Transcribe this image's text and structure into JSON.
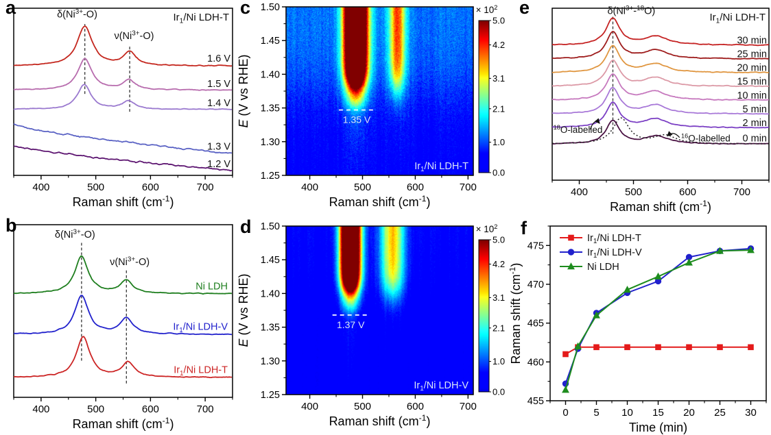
{
  "figure": {
    "background": "#ffffff",
    "text_color": "#000000"
  },
  "chart_data": [
    {
      "panel_letter": "a",
      "type": "spectra",
      "title": "Ir_1_/Ni LDH-T",
      "xlabel": "Raman shift (cm^-1^)",
      "x_range": [
        350,
        750
      ],
      "xticks": [
        "400",
        "500",
        "600",
        "700"
      ],
      "xminor_step": 50,
      "peak_labels": [
        {
          "text": "δ(Ni^3+^-O)",
          "x": 466,
          "yf": 0.055
        },
        {
          "text": "ν(Ni^3+^-O)",
          "x": 570,
          "yf": 0.185
        }
      ],
      "dashed_lines": [
        {
          "x": 480,
          "y0f": 0.095,
          "y1f": 0.52
        },
        {
          "x": 562,
          "y0f": 0.23,
          "y1f": 0.63
        }
      ],
      "curves": [
        {
          "label": "1.6 V",
          "color": "#c4261d",
          "basef": 0.345,
          "peaks": [
            [
              480,
              0.235,
              17
            ],
            [
              562,
              0.082,
              13
            ]
          ],
          "noise": 0.004,
          "label_yf": 0.3
        },
        {
          "label": "1.5 V",
          "color": "#b76bad",
          "basef": 0.49,
          "peaks": [
            [
              480,
              0.185,
              16
            ],
            [
              561,
              0.06,
              13
            ]
          ],
          "noise": 0.004,
          "label_yf": 0.45
        },
        {
          "label": "1.4 V",
          "color": "#9a79cf",
          "basef": 0.605,
          "peaks": [
            [
              479,
              0.148,
              15
            ],
            [
              560,
              0.05,
              13
            ]
          ],
          "noise": 0.004,
          "label_yf": 0.565
        },
        {
          "label": "1.3 V",
          "color": "#5a62c4",
          "basef": 0.695,
          "decay": 0.175,
          "noise": 0.007,
          "label_yf": 0.825
        },
        {
          "label": "1.2 V",
          "color": "#5c1470",
          "basef": 0.82,
          "decay": 0.15,
          "noise": 0.008,
          "label_yf": 0.93
        }
      ]
    },
    {
      "panel_letter": "b",
      "type": "spectra",
      "title": "",
      "xlabel": "Raman shift (cm^-1^)",
      "x_range": [
        350,
        750
      ],
      "xticks": [
        "400",
        "500",
        "600",
        "700"
      ],
      "xminor_step": 50,
      "peak_labels": [
        {
          "text": "δ(Ni^3+^-O)",
          "x": 462,
          "yf": 0.075
        },
        {
          "text": "ν(Ni^3+^-O)",
          "x": 562,
          "yf": 0.235
        }
      ],
      "dashed_lines": [
        {
          "x": 474,
          "y0f": 0.105,
          "y1f": 0.795
        },
        {
          "x": 556,
          "y0f": 0.265,
          "y1f": 0.925
        }
      ],
      "label_colored": true,
      "curves": [
        {
          "label": "Ni LDH",
          "color": "#1e7e1e",
          "basef": 0.4,
          "peaks": [
            [
              474,
              0.215,
              15
            ],
            [
              556,
              0.075,
              14
            ]
          ],
          "noise": 0.004,
          "label_yf": 0.355
        },
        {
          "label": "Ir_1_/Ni LDH-V",
          "color": "#2121cc",
          "basef": 0.635,
          "peaks": [
            [
              474,
              0.225,
              15
            ],
            [
              556,
              0.09,
              14
            ]
          ],
          "noise": 0.004,
          "label_yf": 0.59
        },
        {
          "label": "Ir_1_/Ni LDH-T",
          "color": "#cc2424",
          "basef": 0.885,
          "peaks": [
            [
              477,
              0.235,
              15
            ],
            [
              559,
              0.085,
              14
            ]
          ],
          "noise": 0.004,
          "label_yf": 0.84
        }
      ]
    },
    {
      "panel_letter": "c",
      "type": "heatmap",
      "sample_label": "Ir_1_/Ni LDH-T",
      "xlabel": "Raman shift (cm^-1^)",
      "ylabel": "*E* (V vs RHE)",
      "x_range": [
        355,
        710
      ],
      "xticks": [
        "400",
        "500",
        "600",
        "700"
      ],
      "xminor_step": 50,
      "y_range": [
        1.25,
        1.5
      ],
      "yticks": [
        "1.25",
        "1.30",
        "1.35",
        "1.40",
        "1.45",
        "1.50"
      ],
      "yminor_step": 0.025,
      "colorbar": {
        "title": "× 10^2^",
        "ticks": [
          "0.0",
          "1.0",
          "2.1",
          "3.1",
          "4.2",
          "5.0"
        ],
        "max": 5
      },
      "bands": [
        {
          "center": 487,
          "sigma": 20,
          "amp": 8.0,
          "onset": 1.389,
          "k": 0.01,
          "sub_amp": 1.8,
          "sub_onset": 1.352,
          "sub_k": 0.006,
          "tail": 0.55
        },
        {
          "center": 566,
          "sigma": 15,
          "amp": 2.3,
          "onset": 1.385,
          "k": 0.012,
          "sub_amp": 0.5,
          "sub_onset": 1.36,
          "sub_k": 0.01,
          "tail": 0.2
        }
      ],
      "background": {
        "base": 0.45,
        "rise": 0.75,
        "mid": 1.37,
        "width": 0.03,
        "noise": 0.5
      },
      "marker": {
        "E": 1.347,
        "x0": 455,
        "x1": 523,
        "label": "1.35 V"
      }
    },
    {
      "panel_letter": "d",
      "type": "heatmap",
      "sample_label": "Ir_1_/Ni LDH-V",
      "xlabel": "Raman shift (cm^-1^)",
      "ylabel": "*E* (V vs RHE)",
      "x_range": [
        355,
        710
      ],
      "xticks": [
        "400",
        "500",
        "600",
        "700"
      ],
      "xminor_step": 50,
      "y_range": [
        1.25,
        1.5
      ],
      "yticks": [
        "1.25",
        "1.30",
        "1.35",
        "1.40",
        "1.45",
        "1.50"
      ],
      "yminor_step": 0.025,
      "colorbar": {
        "title": "× 10^2^",
        "ticks": [
          "0.0",
          "1.0",
          "2.1",
          "3.1",
          "4.2",
          "5.0"
        ],
        "max": 5
      },
      "bands": [
        {
          "center": 477,
          "sigma": 18,
          "amp": 8.0,
          "onset": 1.408,
          "k": 0.009,
          "sub_amp": 1.5,
          "sub_onset": 1.375,
          "sub_k": 0.006,
          "tail": 0.3
        },
        {
          "center": 557,
          "sigma": 22,
          "amp": 2.4,
          "onset": 1.405,
          "k": 0.012,
          "sub_amp": 0.4,
          "sub_onset": 1.38,
          "sub_k": 0.01,
          "tail": 0.15
        }
      ],
      "background": {
        "base": 0.32,
        "rise": 0.25,
        "mid": 1.42,
        "width": 0.04,
        "noise": 0.28
      },
      "marker": {
        "E": 1.368,
        "x0": 443,
        "x1": 512,
        "label": "1.37 V"
      }
    },
    {
      "panel_letter": "e",
      "type": "spectra",
      "title": "Ir_1_/Ni LDH-T",
      "xlabel": "Raman shift (cm^-1^)",
      "x_range": [
        350,
        750
      ],
      "xticks": [
        "400",
        "500",
        "600",
        "700"
      ],
      "xminor_step": 50,
      "peak_labels": [
        {
          "text": "δ(Ni^3+^-^18^O)",
          "x": 496,
          "yf": 0.033
        }
      ],
      "dashed_lines": [
        {
          "x": 462,
          "y0f": 0.05,
          "y1f": 0.73
        }
      ],
      "curves": [
        {
          "label": "30 min",
          "color": "#c52222",
          "basef": 0.215,
          "peaks": [
            [
              462,
              0.155,
              15
            ],
            [
              542,
              0.05,
              26
            ]
          ],
          "noise": 0.0035,
          "label_yf": 0.185
        },
        {
          "label": "25 min",
          "color": "#9e1c1c",
          "basef": 0.295,
          "peaks": [
            [
              462,
              0.155,
              15
            ],
            [
              542,
              0.05,
              26
            ]
          ],
          "noise": 0.0035,
          "label_yf": 0.265
        },
        {
          "label": "20 min",
          "color": "#e09640",
          "basef": 0.375,
          "peaks": [
            [
              462,
              0.155,
              15
            ],
            [
              541,
              0.05,
              26
            ]
          ],
          "noise": 0.0035,
          "label_yf": 0.345
        },
        {
          "label": "15 min",
          "color": "#dc99a6",
          "basef": 0.455,
          "peaks": [
            [
              462,
              0.15,
              15
            ],
            [
              541,
              0.05,
              26
            ]
          ],
          "noise": 0.0035,
          "label_yf": 0.425
        },
        {
          "label": "10 min",
          "color": "#c678be",
          "basef": 0.535,
          "peaks": [
            [
              462,
              0.15,
              15
            ],
            [
              540,
              0.05,
              26
            ]
          ],
          "noise": 0.0035,
          "label_yf": 0.505
        },
        {
          "label": "5 min",
          "color": "#a878d8",
          "basef": 0.615,
          "peaks": [
            [
              462,
              0.15,
              15
            ],
            [
              540,
              0.05,
              26
            ]
          ],
          "noise": 0.0035,
          "label_yf": 0.585
        },
        {
          "label": "2 min",
          "color": "#7b3fc4",
          "basef": 0.695,
          "peaks": [
            [
              462,
              0.145,
              15
            ],
            [
              540,
              0.05,
              26
            ]
          ],
          "noise": 0.0035,
          "label_yf": 0.665
        },
        {
          "label": "0 min",
          "color": "#4a1243",
          "basef": 0.79,
          "peaks": [
            [
              462,
              0.135,
              15
            ],
            [
              543,
              0.045,
              26
            ]
          ],
          "noise": 0.0035,
          "label_yf": 0.755
        }
      ],
      "reference_curve": {
        "color": "#222222",
        "basef": 0.79,
        "peaks": [
          [
            477,
            0.15,
            18
          ],
          [
            558,
            0.048,
            24
          ]
        ],
        "noise": 0.002,
        "dotted": true
      },
      "annotations": [
        {
          "text": "^18^O-labelled",
          "x": 352,
          "yf": 0.725,
          "anchor": "start",
          "arrow": {
            "x1": 420,
            "y1f": 0.705,
            "x2": 437,
            "y2f": 0.668
          }
        },
        {
          "text": "^16^O-labelled",
          "x": 588,
          "yf": 0.775,
          "anchor": "start",
          "arrow": {
            "x1": 585,
            "y1f": 0.752,
            "x2": 563,
            "y2f": 0.742
          }
        }
      ]
    },
    {
      "panel_letter": "f",
      "type": "line",
      "xlabel": "Time (min)",
      "ylabel": "Raman shift (cm^-1^)",
      "x_range": [
        -2.5,
        32.5
      ],
      "xticks": [
        "0",
        "5",
        "10",
        "15",
        "20",
        "25",
        "30"
      ],
      "xminor_step": 2.5,
      "y_range": [
        455,
        477.5
      ],
      "yticks": [
        "455",
        "460",
        "465",
        "470",
        "475"
      ],
      "yminor_step": 2.5,
      "x": [
        0,
        2,
        5,
        10,
        15,
        20,
        25,
        30
      ],
      "series": [
        {
          "name": "Ir_1_/Ni LDH-T",
          "color": "#e41a1a",
          "marker": "square",
          "values": [
            461.0,
            461.9,
            461.9,
            461.9,
            461.9,
            461.9,
            461.9,
            461.9
          ]
        },
        {
          "name": "Ir_1_/Ni LDH-V",
          "color": "#2121cc",
          "marker": "circle",
          "values": [
            457.2,
            461.7,
            466.3,
            468.9,
            470.4,
            473.5,
            474.3,
            474.6
          ]
        },
        {
          "name": "Ni LDH",
          "color": "#1e8c1e",
          "marker": "triangle",
          "values": [
            456.4,
            462.0,
            466.0,
            469.3,
            471.0,
            472.8,
            474.3,
            474.4
          ]
        }
      ],
      "legend_position": "top-left"
    }
  ]
}
